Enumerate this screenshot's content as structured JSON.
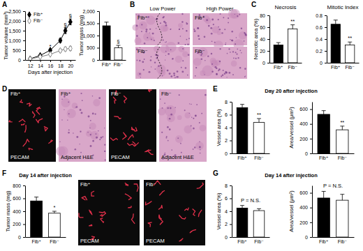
{
  "chart_data": [
    {
      "type": "line",
      "y_label": "Tumor volume (mm³)",
      "x_label": "Days after injection",
      "x": [
        12,
        14,
        16,
        18,
        19,
        20
      ],
      "series": [
        {
          "name": "Fib⁺",
          "color": "#000000",
          "marker": "diamond",
          "values": [
            60,
            230,
            500,
            1000,
            1500,
            1950
          ],
          "errors": [
            20,
            40,
            60,
            100,
            150,
            150
          ]
        },
        {
          "name": "Fib⁻",
          "color": "#808080",
          "marker": "open-diamond",
          "values": [
            50,
            160,
            290,
            480,
            560,
            590
          ],
          "errors": [
            20,
            30,
            50,
            80,
            100,
            110
          ]
        }
      ],
      "xlim": [
        11,
        21
      ],
      "xticks": [
        12,
        14,
        16,
        18,
        20
      ],
      "ylim": [
        0,
        2500
      ],
      "yticks": [
        0,
        500,
        {
          "value": 1000,
          "label": "1,000"
        },
        {
          "value": 1500,
          "label": "1,500"
        },
        {
          "value": 2000,
          "label": "2,000"
        },
        {
          "value": 2500,
          "label": "2,500"
        }
      ],
      "legend": "top-left",
      "annotations": [
        {
          "text": "*",
          "x": 16,
          "y": 620
        },
        {
          "text": "§",
          "x": 19,
          "y": 1720
        },
        {
          "text": "§",
          "x": 20,
          "y": 2170
        }
      ]
    },
    {
      "type": "bar",
      "y_label": "Tumor mass (mg)",
      "categories": [
        "Fib⁺",
        "Fib⁻"
      ],
      "values": [
        1400,
        500
      ],
      "errors": [
        150,
        100
      ],
      "colors": [
        "#000000",
        "#ffffff"
      ],
      "ylim": [
        0,
        2000
      ],
      "yticks": [
        0,
        500,
        {
          "value": 1000,
          "label": "1,000"
        },
        {
          "value": 1500,
          "label": "1,500"
        },
        {
          "value": 2000,
          "label": "2,000"
        }
      ],
      "annotations": [
        {
          "text": "§",
          "x": "Fib⁻"
        }
      ]
    },
    {
      "type": "bar",
      "title": "Necrosis",
      "y_label": "Necrotic area (%)",
      "categories": [
        "Fib⁺",
        "Fib⁻"
      ],
      "values": [
        30,
        57
      ],
      "errors": [
        4,
        7
      ],
      "colors": [
        "#000000",
        "#ffffff"
      ],
      "ylim": [
        0,
        80
      ],
      "yticks": [
        0,
        20,
        40,
        60,
        80
      ],
      "annotations": [
        {
          "text": "**",
          "x": "Fib⁻"
        }
      ]
    },
    {
      "type": "bar",
      "title": "Mitotic Index",
      "categories": [
        "Fib⁺",
        "Fib⁻"
      ],
      "values": [
        0.65,
        0.3
      ],
      "errors": [
        0.07,
        0.05
      ],
      "colors": [
        "#000000",
        "#ffffff"
      ],
      "ylim": [
        0,
        0.8
      ],
      "yticks": [
        0,
        0.2,
        0.4,
        0.6,
        0.8
      ],
      "annotations": [
        {
          "text": "**",
          "x": "Fib⁻"
        }
      ]
    },
    {
      "type": "bar",
      "y_label": "Vessel area (%)",
      "categories": [
        "Fib⁺",
        "Fib⁻"
      ],
      "values": [
        7.1,
        4.8
      ],
      "errors": [
        0.5,
        0.6
      ],
      "colors": [
        "#000000",
        "#ffffff"
      ],
      "ylim": [
        0,
        8
      ],
      "yticks": [
        0,
        2,
        4,
        6,
        8
      ],
      "annotations": [
        {
          "text": "**",
          "x": "Fib⁻"
        }
      ]
    },
    {
      "type": "bar",
      "y_label": "Area/vessel (μm²)",
      "categories": [
        "Fib⁺",
        "Fib⁻"
      ],
      "values": [
        530,
        320
      ],
      "errors": [
        50,
        50
      ],
      "colors": [
        "#000000",
        "#ffffff"
      ],
      "ylim": [
        0,
        700
      ],
      "yticks": [
        0,
        200,
        400,
        600
      ],
      "annotations": [
        {
          "text": "**",
          "x": "Fib⁻"
        }
      ]
    },
    {
      "type": "bar",
      "y_label": "Tumor mass (mg)",
      "categories": [
        "Fib⁺",
        "Fib⁻"
      ],
      "values": [
        560,
        370
      ],
      "errors": [
        60,
        30
      ],
      "colors": [
        "#000000",
        "#ffffff"
      ],
      "ylim": [
        0,
        800
      ],
      "yticks": [
        0,
        200,
        400,
        600,
        800
      ],
      "annotations": [
        {
          "text": "*",
          "x": "Fib⁻"
        }
      ]
    },
    {
      "type": "bar",
      "y_label": "Vessel area (%)",
      "categories": [
        "Fib⁺",
        "Fib⁻"
      ],
      "values": [
        4.5,
        4.1
      ],
      "errors": [
        0.4,
        0.3
      ],
      "colors": [
        "#000000",
        "#ffffff"
      ],
      "ylim": [
        0,
        8
      ],
      "yticks": [
        0,
        2,
        4,
        6,
        8
      ],
      "annotations": [
        {
          "text": "P = N.S."
        }
      ]
    },
    {
      "type": "bar",
      "y_label": "Area/vessel (μm²)",
      "categories": [
        "Fib⁺",
        "Fib⁻"
      ],
      "values": [
        530,
        500
      ],
      "errors": [
        90,
        80
      ],
      "colors": [
        "#000000",
        "#ffffff"
      ],
      "ylim": [
        0,
        700
      ],
      "yticks": [
        0,
        200,
        400,
        600
      ],
      "annotations": [
        {
          "text": "P = N.S."
        }
      ]
    }
  ],
  "panels": [
    {
      "letter": "A"
    },
    {
      "letter": "B"
    },
    {
      "letter": "C"
    },
    {
      "letter": "D"
    },
    {
      "letter": "E",
      "heading": "Day 20 after injection"
    },
    {
      "letter": "F",
      "heading": "Day 14 after injection"
    },
    {
      "letter": "G",
      "heading": "Day 14 after injection"
    }
  ],
  "micrographs": {
    "B": {
      "columns": [
        "Low Power",
        "High Power"
      ],
      "rows": [
        "Fib⁺",
        "Fib⁻"
      ]
    },
    "D": {
      "tiles": [
        [
          "Fib⁺",
          "PECAM"
        ],
        [
          "Fib⁺",
          "Adjacent H&E"
        ],
        [
          "Fib⁻",
          "PECAM"
        ],
        [
          "Fib⁻",
          "Adjacent H&E"
        ]
      ]
    },
    "F": {
      "tiles": [
        [
          "Fib⁺",
          "PECAM"
        ],
        [
          "Fib⁻",
          "PECAM"
        ]
      ]
    }
  }
}
